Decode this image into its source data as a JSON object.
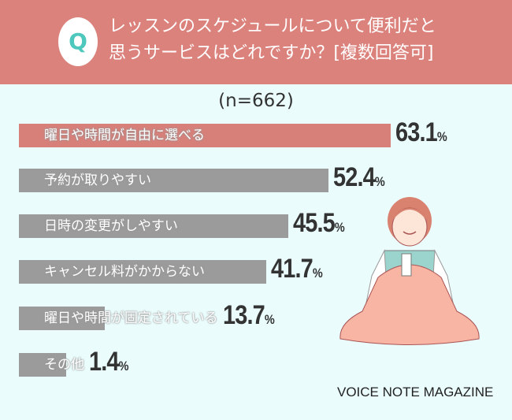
{
  "header": {
    "badge": "Q",
    "title_line1": "レッスンのスケジュールについて便利だと",
    "title_line2": "思うサービスはどれですか？[複数回答可]"
  },
  "sample": "(n=662)",
  "chart_data": {
    "type": "bar",
    "orientation": "horizontal",
    "title": "レッスンのスケジュールについて便利だと思うサービスはどれですか？[複数回答可]",
    "categories": [
      "曜日や時間が自由に選べる",
      "予約が取りやすい",
      "日時の変更がしやすい",
      "キャンセル料がかからない",
      "曜日や時間が固定されている",
      "その他"
    ],
    "values": [
      63.1,
      52.4,
      45.5,
      41.7,
      13.7,
      1.4
    ],
    "unit": "%",
    "highlight_color": "#d7807a",
    "bar_color": "#9b9b9b"
  },
  "brand": "VOICE NOTE MAGAZINE"
}
